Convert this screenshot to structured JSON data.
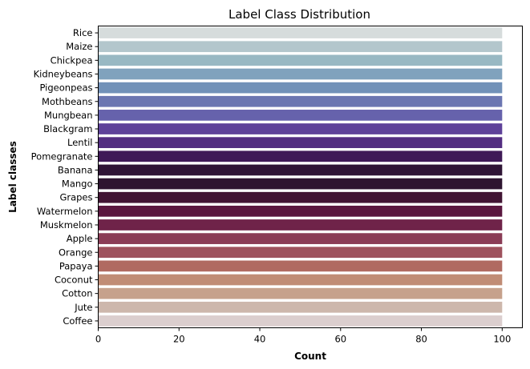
{
  "chart_data": {
    "type": "bar",
    "orientation": "horizontal",
    "title": "Label Class Distribution",
    "xlabel": "Count",
    "ylabel": "Label classes",
    "xlim": [
      0,
      105
    ],
    "xticks": [
      0,
      20,
      40,
      60,
      80,
      100
    ],
    "grid": false,
    "categories": [
      "Rice",
      "Maize",
      "Chickpea",
      "Kidneybeans",
      "Pigeonpeas",
      "Mothbeans",
      "Mungbean",
      "Blackgram",
      "Lentil",
      "Pomegranate",
      "Banana",
      "Mango",
      "Grapes",
      "Watermelon",
      "Muskmelon",
      "Apple",
      "Orange",
      "Papaya",
      "Coconut",
      "Cotton",
      "Jute",
      "Coffee"
    ],
    "values": [
      100,
      100,
      100,
      100,
      100,
      100,
      100,
      100,
      100,
      100,
      100,
      100,
      100,
      100,
      100,
      100,
      100,
      100,
      100,
      100,
      100,
      100
    ],
    "colors": [
      "#d6dcdc",
      "#b3c6cc",
      "#98b8c3",
      "#80a2bd",
      "#7191b8",
      "#6b76b1",
      "#6662ac",
      "#5e4199",
      "#532d81",
      "#3f1a57",
      "#2f1536",
      "#2e1530",
      "#411433",
      "#5a173f",
      "#6f2349",
      "#8a3c56",
      "#9e525d",
      "#b06a61",
      "#c08c75",
      "#c6a18c",
      "#cdb7ac",
      "#dbcece"
    ]
  }
}
